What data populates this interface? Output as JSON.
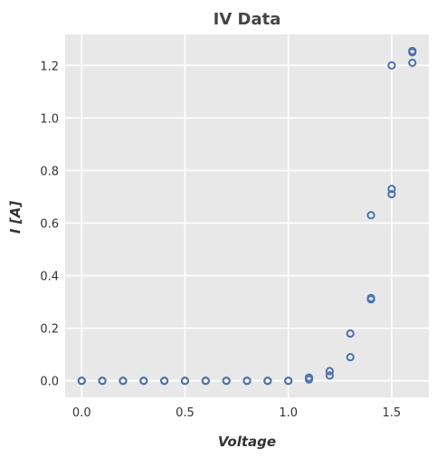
{
  "chart_data": {
    "type": "scatter",
    "title": "IV Data",
    "xlabel": "Voltage",
    "ylabel": "I [A]",
    "xlim": [
      -0.08,
      1.68
    ],
    "ylim": [
      -0.063,
      1.318
    ],
    "xticks": [
      0.0,
      0.5,
      1.0,
      1.5
    ],
    "xtick_labels": [
      "0.0",
      "0.5",
      "1.0",
      "1.5"
    ],
    "yticks": [
      0.0,
      0.2,
      0.4,
      0.6,
      0.8,
      1.0,
      1.2
    ],
    "ytick_labels": [
      "0.0",
      "0.2",
      "0.4",
      "0.6",
      "0.8",
      "1.0",
      "1.2"
    ],
    "grid": true,
    "background": "#e8e8e8",
    "marker_color": "#4c72b0",
    "marker": "open-circle",
    "points": [
      {
        "x": 0.0,
        "y": 0.0
      },
      {
        "x": 0.0,
        "y": 0.0
      },
      {
        "x": 0.1,
        "y": 0.0
      },
      {
        "x": 0.1,
        "y": 0.0
      },
      {
        "x": 0.2,
        "y": 0.0
      },
      {
        "x": 0.2,
        "y": 0.0
      },
      {
        "x": 0.3,
        "y": 0.0
      },
      {
        "x": 0.3,
        "y": 0.0
      },
      {
        "x": 0.4,
        "y": 0.0
      },
      {
        "x": 0.4,
        "y": 0.0
      },
      {
        "x": 0.5,
        "y": 0.0
      },
      {
        "x": 0.5,
        "y": 0.0
      },
      {
        "x": 0.6,
        "y": 0.0
      },
      {
        "x": 0.6,
        "y": 0.0
      },
      {
        "x": 0.7,
        "y": 0.0
      },
      {
        "x": 0.7,
        "y": 0.0
      },
      {
        "x": 0.8,
        "y": 0.0
      },
      {
        "x": 0.8,
        "y": 0.0
      },
      {
        "x": 0.9,
        "y": 0.0
      },
      {
        "x": 0.9,
        "y": 0.0
      },
      {
        "x": 1.0,
        "y": 0.0
      },
      {
        "x": 1.0,
        "y": 0.0
      },
      {
        "x": 1.1,
        "y": 0.005
      },
      {
        "x": 1.1,
        "y": 0.012
      },
      {
        "x": 1.2,
        "y": 0.02
      },
      {
        "x": 1.2,
        "y": 0.037
      },
      {
        "x": 1.3,
        "y": 0.09
      },
      {
        "x": 1.3,
        "y": 0.18
      },
      {
        "x": 1.4,
        "y": 0.31
      },
      {
        "x": 1.4,
        "y": 0.315
      },
      {
        "x": 1.4,
        "y": 0.63
      },
      {
        "x": 1.5,
        "y": 0.71
      },
      {
        "x": 1.5,
        "y": 0.73
      },
      {
        "x": 1.5,
        "y": 1.2
      },
      {
        "x": 1.6,
        "y": 1.21
      },
      {
        "x": 1.6,
        "y": 1.25
      },
      {
        "x": 1.6,
        "y": 1.255
      }
    ]
  }
}
